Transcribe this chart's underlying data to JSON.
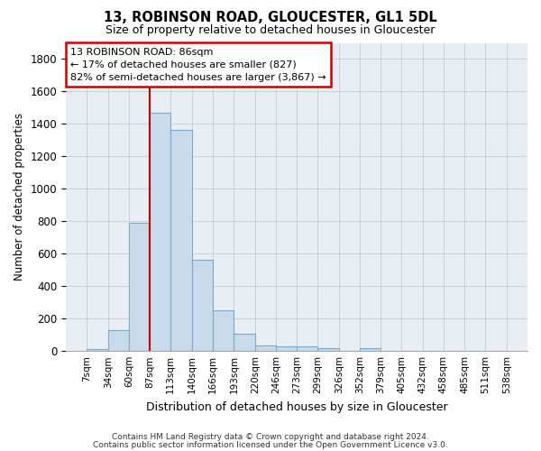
{
  "title": "13, ROBINSON ROAD, GLOUCESTER, GL1 5DL",
  "subtitle": "Size of property relative to detached houses in Gloucester",
  "xlabel": "Distribution of detached houses by size in Gloucester",
  "ylabel": "Number of detached properties",
  "bar_color": "#c9daea",
  "bar_edge_color": "#7aaac8",
  "grid_color": "#c8d0d8",
  "bg_color": "#e8eef4",
  "annotation_box_color": "#cc0000",
  "vline_color": "#cc0000",
  "vline_x": 86,
  "bin_edges": [
    7,
    34,
    60,
    87,
    113,
    140,
    166,
    193,
    220,
    246,
    273,
    299,
    326,
    352,
    379,
    405,
    432,
    458,
    485,
    511,
    538
  ],
  "bar_values": [
    13,
    130,
    793,
    1470,
    1365,
    563,
    249,
    107,
    35,
    29,
    28,
    18,
    0,
    19,
    0,
    0,
    0,
    0,
    0,
    0
  ],
  "annotation_text": "13 ROBINSON ROAD: 86sqm\n← 17% of detached houses are smaller (827)\n82% of semi-detached houses are larger (3,867) →",
  "ylim": [
    0,
    1900
  ],
  "yticks": [
    0,
    200,
    400,
    600,
    800,
    1000,
    1200,
    1400,
    1600,
    1800
  ],
  "footer_line1": "Contains HM Land Registry data © Crown copyright and database right 2024.",
  "footer_line2": "Contains public sector information licensed under the Open Government Licence v3.0."
}
